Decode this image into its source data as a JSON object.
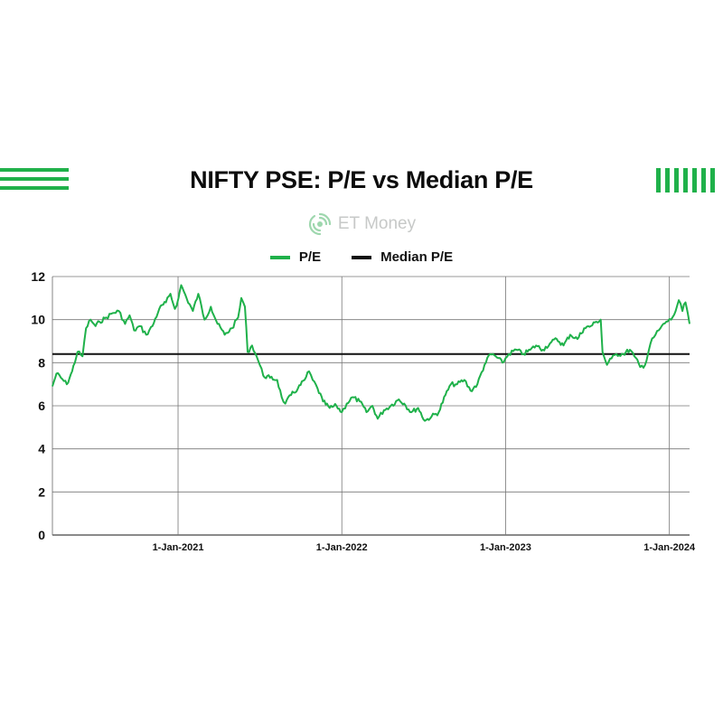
{
  "chart_data": {
    "type": "line",
    "title": "NIFTY PSE: P/E vs Median P/E",
    "xlabel": "",
    "ylabel": "",
    "x_range": [
      "2020-03-27",
      "2024-02-15"
    ],
    "ylim": [
      0,
      12
    ],
    "yticks": [
      0,
      2,
      4,
      6,
      8,
      10,
      12
    ],
    "xticks": [
      {
        "date": "2021-01-01",
        "label": "1-Jan-2021"
      },
      {
        "date": "2022-01-01",
        "label": "1-Jan-2022"
      },
      {
        "date": "2023-01-01",
        "label": "1-Jan-2023"
      },
      {
        "date": "2024-01-01",
        "label": "1-Jan-2024"
      }
    ],
    "grid": true,
    "legend_position": "top-center",
    "series": [
      {
        "name": "P/E",
        "color": "#1fb14a",
        "points": [
          [
            "2020-03-27",
            6.9
          ],
          [
            "2020-04-05",
            7.5
          ],
          [
            "2020-04-15",
            7.3
          ],
          [
            "2020-04-28",
            7.0
          ],
          [
            "2020-05-10",
            7.6
          ],
          [
            "2020-05-22",
            8.5
          ],
          [
            "2020-06-02",
            8.3
          ],
          [
            "2020-06-10",
            9.6
          ],
          [
            "2020-06-20",
            10.0
          ],
          [
            "2020-07-01",
            9.7
          ],
          [
            "2020-07-10",
            9.9
          ],
          [
            "2020-07-25",
            10.1
          ],
          [
            "2020-08-08",
            10.3
          ],
          [
            "2020-08-22",
            10.4
          ],
          [
            "2020-09-05",
            9.8
          ],
          [
            "2020-09-15",
            10.2
          ],
          [
            "2020-09-25",
            9.5
          ],
          [
            "2020-10-08",
            9.7
          ],
          [
            "2020-10-22",
            9.3
          ],
          [
            "2020-11-05",
            9.7
          ],
          [
            "2020-11-20",
            10.5
          ],
          [
            "2020-12-05",
            10.8
          ],
          [
            "2020-12-15",
            11.2
          ],
          [
            "2020-12-25",
            10.5
          ],
          [
            "2021-01-02",
            11.0
          ],
          [
            "2021-01-08",
            11.6
          ],
          [
            "2021-01-20",
            11.0
          ],
          [
            "2021-02-03",
            10.4
          ],
          [
            "2021-02-15",
            11.2
          ],
          [
            "2021-03-01",
            10.0
          ],
          [
            "2021-03-15",
            10.6
          ],
          [
            "2021-03-30",
            9.8
          ],
          [
            "2021-04-15",
            9.3
          ],
          [
            "2021-05-01",
            9.6
          ],
          [
            "2021-05-15",
            10.1
          ],
          [
            "2021-05-22",
            11.0
          ],
          [
            "2021-05-30",
            10.6
          ],
          [
            "2021-06-05",
            8.5
          ],
          [
            "2021-06-15",
            8.8
          ],
          [
            "2021-06-25",
            8.3
          ],
          [
            "2021-07-02",
            7.9
          ],
          [
            "2021-07-10",
            7.4
          ],
          [
            "2021-07-25",
            7.3
          ],
          [
            "2021-08-10",
            7.2
          ],
          [
            "2021-08-20",
            6.4
          ],
          [
            "2021-08-28",
            6.1
          ],
          [
            "2021-09-10",
            6.5
          ],
          [
            "2021-09-25",
            6.8
          ],
          [
            "2021-10-10",
            7.2
          ],
          [
            "2021-10-20",
            7.6
          ],
          [
            "2021-10-28",
            7.2
          ],
          [
            "2021-11-08",
            6.8
          ],
          [
            "2021-11-20",
            6.2
          ],
          [
            "2021-12-05",
            5.9
          ],
          [
            "2021-12-20",
            6.0
          ],
          [
            "2022-01-01",
            5.7
          ],
          [
            "2022-01-12",
            6.1
          ],
          [
            "2022-01-25",
            6.4
          ],
          [
            "2022-02-10",
            6.2
          ],
          [
            "2022-02-25",
            5.7
          ],
          [
            "2022-03-10",
            6.0
          ],
          [
            "2022-03-22",
            5.4
          ],
          [
            "2022-04-05",
            5.8
          ],
          [
            "2022-04-20",
            6.0
          ],
          [
            "2022-05-08",
            6.3
          ],
          [
            "2022-05-20",
            6.1
          ],
          [
            "2022-06-05",
            5.7
          ],
          [
            "2022-06-20",
            5.9
          ],
          [
            "2022-07-05",
            5.3
          ],
          [
            "2022-07-20",
            5.5
          ],
          [
            "2022-08-05",
            5.7
          ],
          [
            "2022-08-20",
            6.5
          ],
          [
            "2022-09-01",
            7.0
          ],
          [
            "2022-09-15",
            7.0
          ],
          [
            "2022-10-01",
            7.2
          ],
          [
            "2022-10-15",
            6.7
          ],
          [
            "2022-10-30",
            7.0
          ],
          [
            "2022-11-15",
            7.9
          ],
          [
            "2022-11-28",
            8.4
          ],
          [
            "2022-12-10",
            8.3
          ],
          [
            "2022-12-25",
            8.0
          ],
          [
            "2023-01-08",
            8.4
          ],
          [
            "2023-01-25",
            8.6
          ],
          [
            "2023-02-10",
            8.4
          ],
          [
            "2023-02-25",
            8.6
          ],
          [
            "2023-03-10",
            8.8
          ],
          [
            "2023-03-25",
            8.6
          ],
          [
            "2023-04-10",
            8.9
          ],
          [
            "2023-04-25",
            9.1
          ],
          [
            "2023-05-10",
            8.8
          ],
          [
            "2023-05-25",
            9.3
          ],
          [
            "2023-06-10",
            9.1
          ],
          [
            "2023-06-25",
            9.6
          ],
          [
            "2023-07-10",
            9.7
          ],
          [
            "2023-07-22",
            9.9
          ],
          [
            "2023-08-01",
            10.0
          ],
          [
            "2023-08-05",
            8.5
          ],
          [
            "2023-08-15",
            7.9
          ],
          [
            "2023-08-25",
            8.2
          ],
          [
            "2023-09-05",
            8.4
          ],
          [
            "2023-09-20",
            8.4
          ],
          [
            "2023-10-05",
            8.6
          ],
          [
            "2023-10-15",
            8.3
          ],
          [
            "2023-10-28",
            7.8
          ],
          [
            "2023-11-08",
            7.9
          ],
          [
            "2023-11-20",
            8.9
          ],
          [
            "2023-12-01",
            9.3
          ],
          [
            "2023-12-12",
            9.6
          ],
          [
            "2023-12-25",
            9.9
          ],
          [
            "2024-01-05",
            10.0
          ],
          [
            "2024-01-15",
            10.4
          ],
          [
            "2024-01-22",
            10.9
          ],
          [
            "2024-01-30",
            10.4
          ],
          [
            "2024-02-06",
            10.8
          ],
          [
            "2024-02-11",
            10.3
          ],
          [
            "2024-02-15",
            9.8
          ]
        ]
      },
      {
        "name": "Median P/E",
        "color": "#111111",
        "constant": 8.4
      }
    ]
  },
  "brand": {
    "text": "ET Money",
    "accent_color": "#1fb14a",
    "icon": "et-money-logo-icon"
  }
}
